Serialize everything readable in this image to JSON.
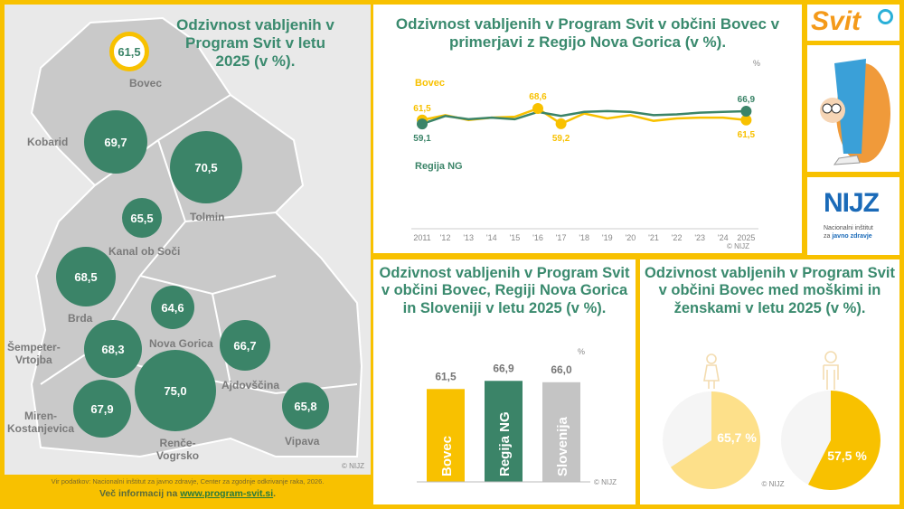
{
  "colors": {
    "yellow": "#f8c100",
    "green": "#3b8468",
    "grey": "#c4c4c4",
    "light_yellow": "#fde08a"
  },
  "map": {
    "title": "Odzivnost vabljenih v Program Svit v letu 2025 (v %).",
    "copyright": "© NIJZ",
    "municipalities": [
      {
        "name": "Bovec",
        "value": "61,5"
      },
      {
        "name": "Kobarid",
        "value": "69,7"
      },
      {
        "name": "Tolmin",
        "value": "70,5"
      },
      {
        "name": "Kanal ob Soči",
        "value": "65,5"
      },
      {
        "name": "Brda",
        "value": "68,5"
      },
      {
        "name": "Nova Gorica",
        "value": "64,6"
      },
      {
        "name": "Šempeter-Vrtojba",
        "value": "68,3"
      },
      {
        "name": "Ajdovščina",
        "value": "66,7"
      },
      {
        "name": "Miren-Kostanjevica",
        "value": "67,9"
      },
      {
        "name": "Renče-Vogrsko",
        "value": "75,0"
      },
      {
        "name": "Vipava",
        "value": "65,8"
      }
    ]
  },
  "footer": {
    "source": "Vir podatkov: Nacionalni inštitut za javno zdravje, Center za zgodnje odkrivanje raka, 2026.",
    "more_prefix": "Več informacij na ",
    "link": "www.program-svit.si",
    "suffix": "."
  },
  "chart_data": [
    {
      "type": "line",
      "title": "Odzivnost vabljenih v Program Svit v občini Bovec v primerjavi z Regijo Nova Gorica (v %).",
      "unit": "%",
      "x": [
        "2011",
        "'12",
        "'13",
        "'14",
        "'15",
        "'16",
        "'17",
        "'18",
        "'19",
        "'20",
        "'21",
        "'22",
        "'23",
        "'24",
        "2025"
      ],
      "series": [
        {
          "name": "Bovec",
          "color": "#f8c100",
          "values": [
            61.5,
            64.5,
            61.5,
            63.0,
            63.5,
            68.6,
            59.2,
            65.5,
            62.5,
            64.5,
            61.0,
            62.5,
            63.0,
            63.0,
            61.5
          ]
        },
        {
          "name": "Regija NG",
          "color": "#3b8468",
          "values": [
            59.1,
            64.0,
            62.0,
            63.0,
            62.0,
            66.5,
            64.0,
            66.5,
            67.0,
            66.5,
            64.5,
            65.0,
            66.0,
            66.5,
            66.9
          ]
        }
      ],
      "annotations": [
        {
          "series": "Bovec",
          "x": "2011",
          "label": "61,5"
        },
        {
          "series": "Bovec",
          "x": "'16",
          "label": "68,6"
        },
        {
          "series": "Bovec",
          "x": "'17",
          "label": "59,2"
        },
        {
          "series": "Bovec",
          "x": "2025",
          "label": "61,5"
        },
        {
          "series": "Regija NG",
          "x": "2011",
          "label": "59,1"
        },
        {
          "series": "Regija NG",
          "x": "2025",
          "label": "66,9"
        }
      ],
      "copyright": "© NIJZ"
    },
    {
      "type": "bar",
      "title": "Odzivnost vabljenih v Program Svit v občini Bovec, Regiji Nova Gorica in Sloveniji v letu 2025 (v %).",
      "unit": "%",
      "categories": [
        "Bovec",
        "Regija NG",
        "Slovenija"
      ],
      "values": [
        61.5,
        66.9,
        66.0
      ],
      "labels": [
        "61,5",
        "66,9",
        "66,0"
      ],
      "colors": [
        "#f8c100",
        "#3b8468",
        "#c4c4c4"
      ],
      "ylim": [
        0,
        70
      ],
      "copyright": "© NIJZ"
    },
    {
      "type": "pie",
      "title": "Odzivnost vabljenih v Program Svit v občini Bovec med moškimi in ženskami v letu 2025 (v %).",
      "pies": [
        {
          "group": "ženske",
          "icon": "woman-icon",
          "value": 65.7,
          "label": "65,7 %",
          "color": "#fde08a"
        },
        {
          "group": "moški",
          "icon": "man-icon",
          "value": 57.5,
          "label": "57,5 %",
          "color": "#f8c100"
        }
      ],
      "copyright": "© NIJZ"
    }
  ],
  "logos": {
    "svit": "Svit",
    "nijz": "NIJZ",
    "nijz_line1": "Nacionalni inštitut",
    "nijz_line2a": "za ",
    "nijz_line2b": "javno zdravje"
  }
}
